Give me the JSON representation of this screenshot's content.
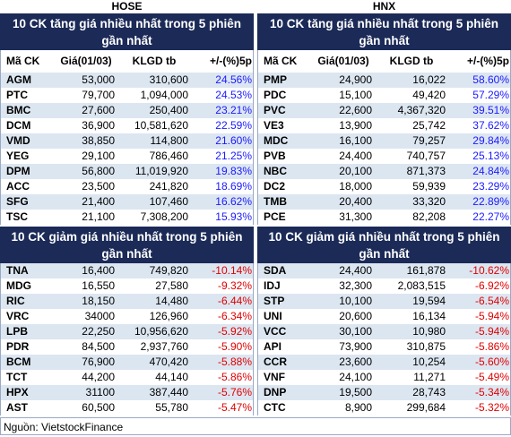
{
  "panels": [
    {
      "exchange": "HOSE",
      "headers": [
        "Mã CK",
        "Giá(01/03)",
        "KLGD tb",
        "+/-(%)5p"
      ],
      "sections": [
        {
          "title": "10 CK tăng giá nhiều nhất trong 5 phiên gần nhất",
          "rows": [
            [
              "AGM",
              "53,000",
              "310,600",
              "24.56%"
            ],
            [
              "PTC",
              "79,700",
              "1,094,000",
              "24.53%"
            ],
            [
              "BMC",
              "27,600",
              "250,400",
              "23.21%"
            ],
            [
              "DCM",
              "36,900",
              "10,581,620",
              "22.59%"
            ],
            [
              "VMD",
              "38,850",
              "114,800",
              "21.60%"
            ],
            [
              "YEG",
              "29,100",
              "786,460",
              "21.25%"
            ],
            [
              "DPM",
              "56,800",
              "11,019,920",
              "19.83%"
            ],
            [
              "ACC",
              "23,500",
              "241,820",
              "18.69%"
            ],
            [
              "SFG",
              "21,400",
              "107,460",
              "16.62%"
            ],
            [
              "TSC",
              "21,100",
              "7,308,200",
              "15.93%"
            ]
          ]
        },
        {
          "title": "10 CK giảm giá nhiều nhất trong 5 phiên gần nhất",
          "rows": [
            [
              "TNA",
              "16,400",
              "749,820",
              "-10.14%"
            ],
            [
              "MDG",
              "16,550",
              "27,580",
              "-9.32%"
            ],
            [
              "RIC",
              "18,150",
              "14,480",
              "-6.44%"
            ],
            [
              "VRC",
              "34000",
              "126,960",
              "-6.34%"
            ],
            [
              "LPB",
              "22,250",
              "10,956,620",
              "-5.92%"
            ],
            [
              "PDR",
              "84,500",
              "2,937,760",
              "-5.90%"
            ],
            [
              "BCM",
              "76,900",
              "470,420",
              "-5.88%"
            ],
            [
              "TCT",
              "44,200",
              "44,140",
              "-5.86%"
            ],
            [
              "HPX",
              "31100",
              "387,440",
              "-5.76%"
            ],
            [
              "AST",
              "60,500",
              "55,780",
              "-5.47%"
            ]
          ]
        }
      ]
    },
    {
      "exchange": "HNX",
      "headers": [
        "Mã CK",
        "Giá(01/03)",
        "KLGD tb",
        "+/-(%)5p"
      ],
      "sections": [
        {
          "title": "10 CK tăng giá nhiều nhất trong 5 phiên gần nhất",
          "rows": [
            [
              "PMP",
              "24,900",
              "16,022",
              "58.60%"
            ],
            [
              "PDC",
              "15,100",
              "49,420",
              "57.29%"
            ],
            [
              "PVC",
              "22,600",
              "4,367,320",
              "39.51%"
            ],
            [
              "VE3",
              "13,900",
              "25,742",
              "37.62%"
            ],
            [
              "MDC",
              "16,100",
              "79,257",
              "29.84%"
            ],
            [
              "PVB",
              "24,400",
              "740,757",
              "25.13%"
            ],
            [
              "NBC",
              "20,100",
              "871,373",
              "24.84%"
            ],
            [
              "DC2",
              "18,000",
              "59,939",
              "23.29%"
            ],
            [
              "TMB",
              "20,400",
              "33,320",
              "22.89%"
            ],
            [
              "PCE",
              "31,300",
              "82,208",
              "22.27%"
            ]
          ]
        },
        {
          "title": "10 CK giảm giá nhiều nhất trong 5 phiên gần nhất",
          "rows": [
            [
              "SDA",
              "24,400",
              "161,878",
              "-10.62%"
            ],
            [
              "IDJ",
              "32,300",
              "2,083,515",
              "-6.92%"
            ],
            [
              "STP",
              "10,100",
              "19,594",
              "-6.54%"
            ],
            [
              "UNI",
              "20,600",
              "16,134",
              "-5.94%"
            ],
            [
              "VCC",
              "30,100",
              "10,980",
              "-5.94%"
            ],
            [
              "API",
              "73,900",
              "310,875",
              "-5.86%"
            ],
            [
              "CCR",
              "23,600",
              "10,254",
              "-5.60%"
            ],
            [
              "VNF",
              "24,100",
              "11,271",
              "-5.49%"
            ],
            [
              "DNP",
              "19,500",
              "28,743",
              "-5.34%"
            ],
            [
              "CTC",
              "8,900",
              "299,684",
              "-5.32%"
            ]
          ]
        }
      ]
    }
  ],
  "source": "Nguồn: VietstockFinance"
}
